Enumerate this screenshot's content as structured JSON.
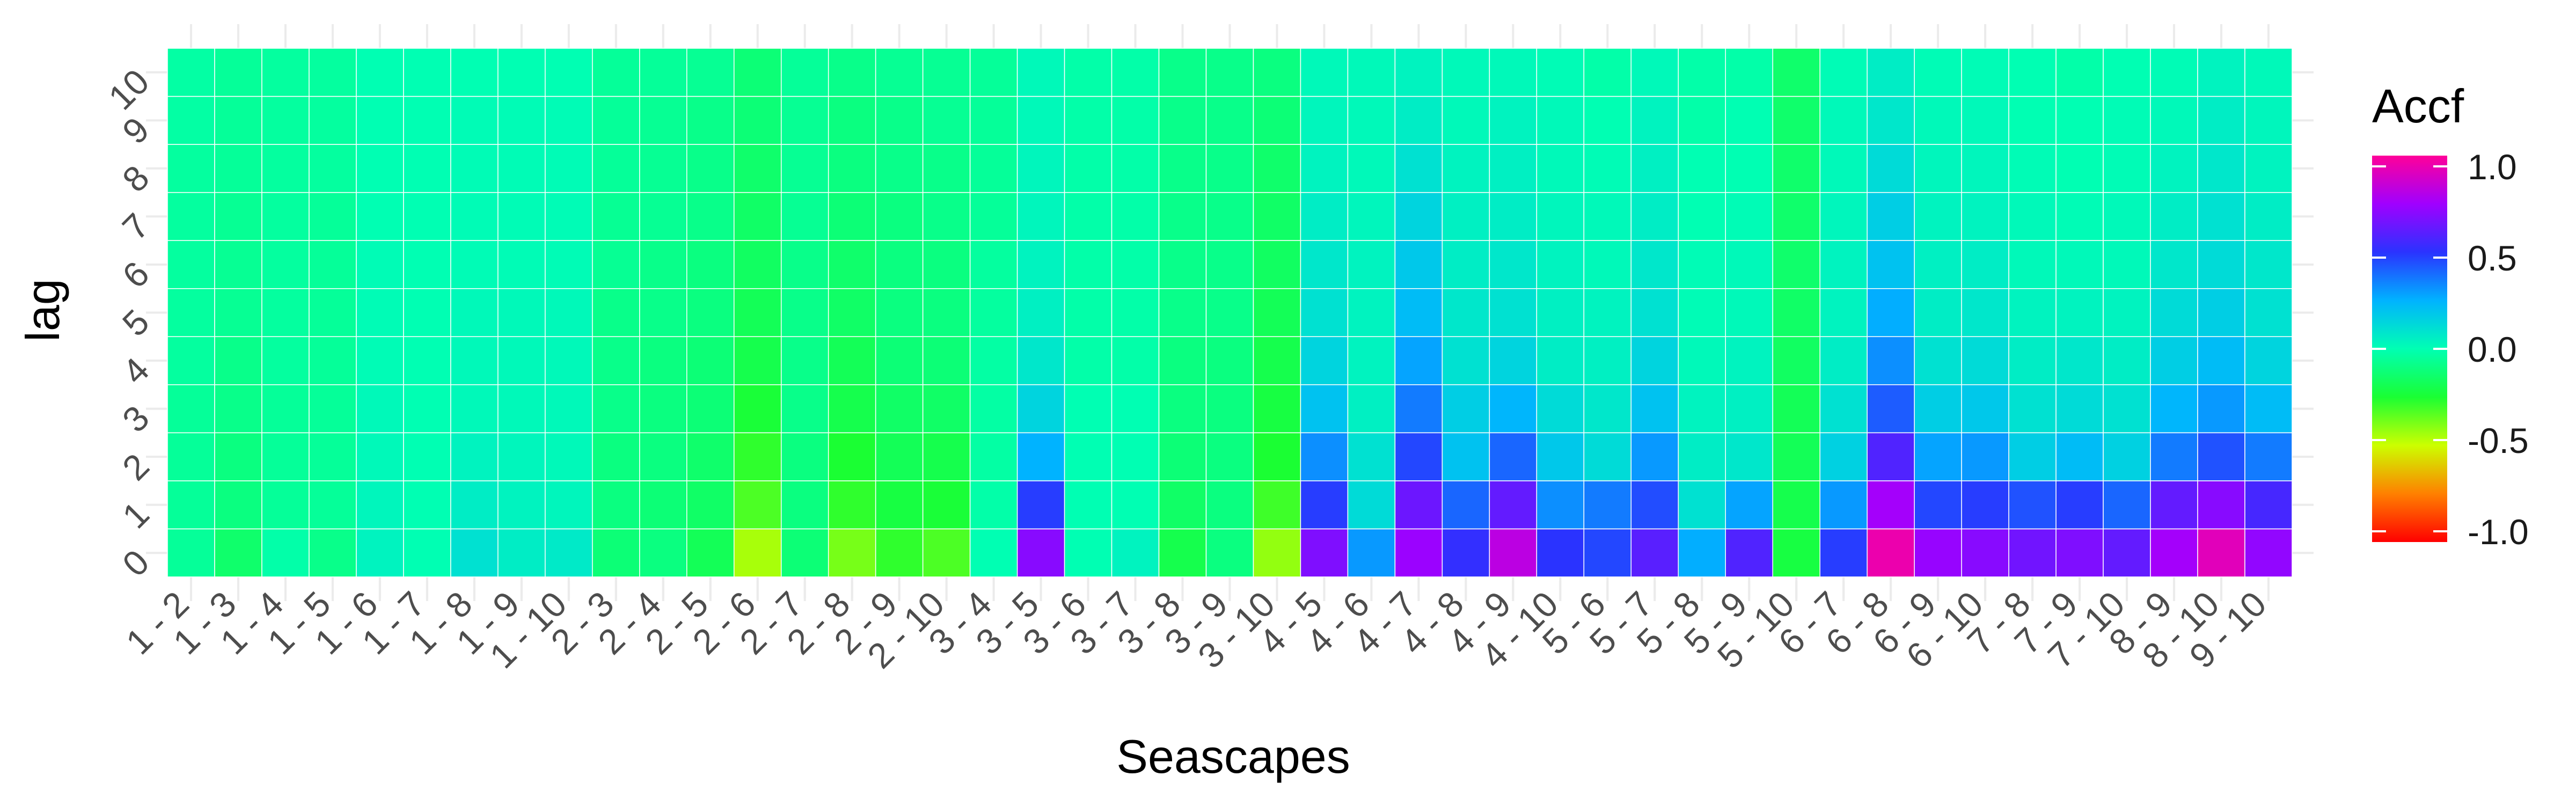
{
  "chart_data": {
    "type": "heatmap",
    "xlabel": "Seascapes",
    "ylabel": "lag",
    "legend_title": "Accf",
    "legend_ticks": [
      1.0,
      0.5,
      0.0,
      -0.5,
      -1.0
    ],
    "legend_tick_labels": [
      "1.0",
      "0.5",
      "0.0",
      "-0.5",
      "-1.0"
    ],
    "legend_position": "right",
    "color_scale": "rainbow: -1.0 red, -0.5 yellow, 0.0 green-cyan, 0.5 blue, 1.0 magenta",
    "zlim": [
      -1.0,
      1.0
    ],
    "y_categories": [
      "0",
      "1",
      "2",
      "3",
      "4",
      "5",
      "6",
      "7",
      "8",
      "9",
      "10"
    ],
    "x_categories": [
      "1 - 2",
      "1 - 3",
      "1 - 4",
      "1 - 5",
      "1 - 6",
      "1 - 7",
      "1 - 8",
      "1 - 9",
      "1 - 10",
      "2 - 3",
      "2 - 4",
      "2 - 5",
      "2 - 6",
      "2 - 7",
      "2 - 8",
      "2 - 9",
      "2 - 10",
      "3 - 4",
      "3 - 5",
      "3 - 6",
      "3 - 7",
      "3 - 8",
      "3 - 9",
      "3 - 10",
      "4 - 5",
      "4 - 6",
      "4 - 7",
      "4 - 8",
      "4 - 9",
      "4 - 10",
      "5 - 6",
      "5 - 7",
      "5 - 8",
      "5 - 9",
      "5 - 10",
      "6 - 7",
      "6 - 8",
      "6 - 9",
      "6 - 10",
      "7 - 8",
      "7 - 9",
      "7 - 10",
      "8 - 9",
      "8 - 10",
      "9 - 10"
    ],
    "values": [
      [
        -0.05,
        -0.14,
        -0.02,
        -0.08,
        0.04,
        0.0,
        0.1,
        0.06,
        0.07,
        -0.12,
        -0.1,
        -0.18,
        -0.45,
        -0.12,
        -0.38,
        -0.28,
        -0.32,
        0.0,
        0.7,
        0.0,
        0.04,
        -0.2,
        -0.1,
        -0.42,
        0.68,
        0.3,
        0.74,
        0.52,
        0.82,
        0.5,
        0.46,
        0.6,
        0.26,
        0.58,
        -0.22,
        0.48,
        0.95,
        0.73,
        0.7,
        0.65,
        0.68,
        0.62,
        0.76,
        0.92,
        0.72
      ],
      [
        -0.05,
        -0.1,
        -0.05,
        -0.05,
        0.03,
        0.0,
        0.06,
        0.04,
        0.03,
        -0.1,
        -0.12,
        -0.15,
        -0.32,
        -0.1,
        -0.28,
        -0.22,
        -0.24,
        -0.02,
        0.48,
        0.0,
        0.0,
        -0.15,
        -0.1,
        -0.3,
        0.48,
        0.12,
        0.64,
        0.4,
        0.62,
        0.32,
        0.36,
        0.45,
        0.1,
        0.28,
        -0.2,
        0.3,
        0.76,
        0.46,
        0.48,
        0.44,
        0.48,
        0.4,
        0.62,
        0.7,
        0.56
      ],
      [
        -0.05,
        -0.1,
        -0.05,
        -0.05,
        0.02,
        0.0,
        0.04,
        0.03,
        0.02,
        -0.1,
        -0.1,
        -0.14,
        -0.28,
        -0.1,
        -0.25,
        -0.18,
        -0.2,
        -0.03,
        0.25,
        0.0,
        0.0,
        -0.12,
        -0.1,
        -0.25,
        0.32,
        0.1,
        0.46,
        0.2,
        0.4,
        0.18,
        0.12,
        0.3,
        0.06,
        0.08,
        -0.18,
        0.15,
        0.58,
        0.28,
        0.3,
        0.16,
        0.22,
        0.15,
        0.36,
        0.44,
        0.36
      ],
      [
        -0.05,
        -0.08,
        -0.05,
        -0.05,
        0.02,
        0.0,
        0.02,
        0.02,
        0.02,
        -0.08,
        -0.1,
        -0.12,
        -0.24,
        -0.08,
        -0.2,
        -0.15,
        -0.15,
        -0.03,
        0.14,
        0.0,
        0.0,
        -0.1,
        -0.1,
        -0.22,
        0.2,
        0.05,
        0.36,
        0.16,
        0.24,
        0.12,
        0.08,
        0.2,
        0.04,
        0.05,
        -0.18,
        0.1,
        0.42,
        0.16,
        0.18,
        0.1,
        0.12,
        0.1,
        0.24,
        0.3,
        0.22
      ],
      [
        -0.04,
        -0.08,
        -0.04,
        -0.05,
        0.01,
        0.0,
        0.02,
        0.02,
        0.02,
        -0.08,
        -0.1,
        -0.12,
        -0.2,
        -0.08,
        -0.18,
        -0.12,
        -0.12,
        -0.03,
        0.08,
        -0.02,
        -0.02,
        -0.1,
        -0.1,
        -0.2,
        0.14,
        0.04,
        0.28,
        0.1,
        0.14,
        0.06,
        0.05,
        0.14,
        0.02,
        0.04,
        -0.16,
        0.06,
        0.32,
        0.1,
        0.12,
        0.06,
        0.08,
        0.06,
        0.16,
        0.22,
        0.14
      ],
      [
        -0.04,
        -0.06,
        -0.04,
        -0.05,
        0.01,
        0.0,
        0.02,
        0.02,
        0.02,
        -0.08,
        -0.08,
        -0.1,
        -0.18,
        -0.08,
        -0.15,
        -0.1,
        -0.1,
        -0.04,
        0.05,
        -0.02,
        -0.02,
        -0.08,
        -0.08,
        -0.18,
        0.1,
        0.04,
        0.22,
        0.08,
        0.1,
        0.05,
        0.04,
        0.1,
        0.01,
        0.02,
        -0.15,
        0.04,
        0.26,
        0.06,
        0.08,
        0.04,
        0.04,
        0.04,
        0.12,
        0.16,
        0.1
      ],
      [
        -0.04,
        -0.06,
        -0.04,
        -0.05,
        0.01,
        0.0,
        0.01,
        0.01,
        0.01,
        -0.06,
        -0.08,
        -0.1,
        -0.16,
        -0.08,
        -0.14,
        -0.1,
        -0.1,
        -0.04,
        0.04,
        -0.02,
        -0.02,
        -0.08,
        -0.08,
        -0.16,
        0.08,
        0.04,
        0.18,
        0.06,
        0.08,
        0.04,
        0.02,
        0.08,
        0.01,
        0.02,
        -0.14,
        0.04,
        0.2,
        0.05,
        0.06,
        0.02,
        0.02,
        0.02,
        0.08,
        0.12,
        0.08
      ],
      [
        -0.04,
        -0.06,
        -0.04,
        -0.05,
        0.0,
        0.0,
        0.01,
        0.01,
        0.01,
        -0.06,
        -0.06,
        -0.08,
        -0.15,
        -0.06,
        -0.12,
        -0.1,
        -0.08,
        -0.05,
        0.03,
        -0.02,
        -0.02,
        -0.08,
        -0.08,
        -0.15,
        0.06,
        0.03,
        0.14,
        0.05,
        0.06,
        0.03,
        0.02,
        0.06,
        0.0,
        0.01,
        -0.14,
        0.03,
        0.16,
        0.04,
        0.04,
        0.02,
        0.01,
        0.02,
        0.06,
        0.1,
        0.06
      ],
      [
        -0.04,
        -0.05,
        -0.04,
        -0.04,
        0.0,
        0.0,
        0.01,
        0.01,
        0.01,
        -0.05,
        -0.06,
        -0.08,
        -0.14,
        -0.06,
        -0.1,
        -0.08,
        -0.08,
        -0.05,
        0.03,
        -0.02,
        -0.02,
        -0.08,
        -0.08,
        -0.14,
        0.04,
        0.02,
        0.1,
        0.04,
        0.05,
        0.02,
        0.01,
        0.05,
        0.0,
        0.0,
        -0.14,
        0.02,
        0.12,
        0.03,
        0.03,
        0.01,
        0.0,
        0.01,
        0.04,
        0.08,
        0.04
      ],
      [
        -0.03,
        -0.05,
        -0.04,
        -0.04,
        0.0,
        0.0,
        0.01,
        0.01,
        0.01,
        -0.05,
        -0.06,
        -0.08,
        -0.12,
        -0.06,
        -0.1,
        -0.08,
        -0.06,
        -0.05,
        0.02,
        -0.02,
        -0.02,
        -0.08,
        -0.08,
        -0.12,
        0.03,
        0.02,
        0.06,
        0.02,
        0.04,
        0.02,
        0.0,
        0.04,
        -0.02,
        0.0,
        -0.14,
        0.02,
        0.08,
        0.02,
        0.02,
        0.0,
        0.0,
        0.01,
        0.02,
        0.06,
        0.03
      ],
      [
        -0.03,
        -0.05,
        -0.04,
        -0.04,
        0.0,
        0.0,
        0.0,
        0.0,
        0.0,
        -0.05,
        -0.05,
        -0.06,
        -0.12,
        -0.05,
        -0.08,
        -0.06,
        -0.06,
        -0.05,
        0.02,
        -0.02,
        -0.02,
        -0.08,
        -0.08,
        -0.1,
        0.02,
        0.02,
        0.04,
        0.02,
        0.02,
        0.01,
        -0.02,
        0.02,
        -0.02,
        -0.02,
        -0.14,
        0.01,
        0.06,
        0.01,
        0.01,
        0.0,
        -0.02,
        0.0,
        0.01,
        0.04,
        0.02
      ]
    ]
  }
}
